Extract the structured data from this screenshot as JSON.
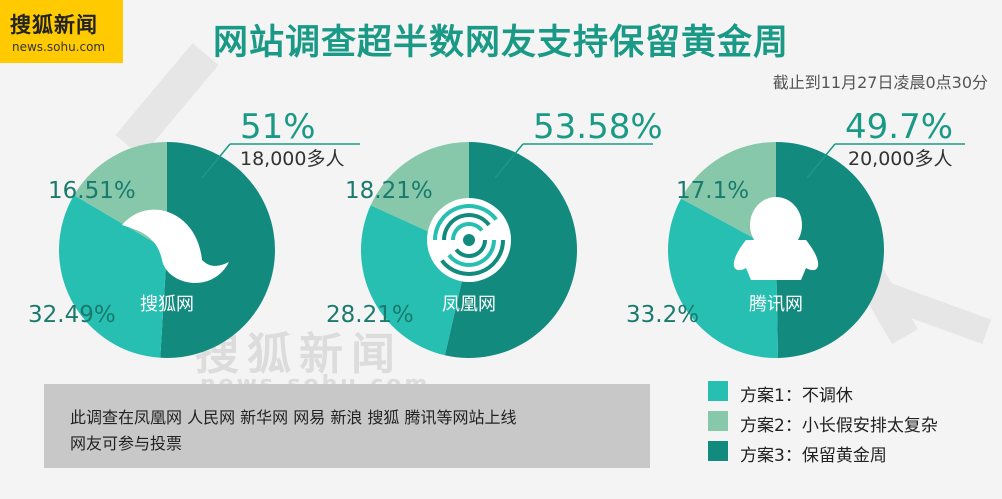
{
  "header": {
    "logo_text": "搜狐新闻",
    "logo_domain": "news.sohu.com",
    "title": "网站调查超半数网友支持保留黄金周",
    "as_of": "截止到11月27日凌晨0点30分"
  },
  "watermark": {
    "cn": "搜狐新闻",
    "en": "news.sohu.com"
  },
  "note": {
    "line1": "此调查在凤凰网 人民网 新华网 网易 新浪 搜狐 腾讯等网站上线",
    "line2": "网友可参与投票"
  },
  "legend": [
    {
      "label": "方案1：不调休",
      "color": "#26bfb2"
    },
    {
      "label": "方案2：小长假安排太复杂",
      "color": "#86c8a9"
    },
    {
      "label": "方案3：保留黄金周",
      "color": "#138a7e"
    }
  ],
  "colors": {
    "opt1": "#26bfb2",
    "opt2": "#86c8a9",
    "opt3": "#138a7e",
    "title": "#1a9a86"
  },
  "chart_data": [
    {
      "type": "pie",
      "name": "搜狐网",
      "icon": "fox-tail-icon",
      "values": [
        32.49,
        16.51,
        51
      ],
      "labels": [
        "32.49%",
        "16.51%",
        "51%"
      ],
      "participants": "18,000多人"
    },
    {
      "type": "pie",
      "name": "凤凰网",
      "icon": "phoenix-logo-icon",
      "values": [
        28.21,
        18.21,
        53.58
      ],
      "labels": [
        "28.21%",
        "18.21%",
        "53.58%"
      ],
      "participants": ""
    },
    {
      "type": "pie",
      "name": "腾讯网",
      "icon": "penguin-icon",
      "values": [
        33.2,
        17.1,
        49.7
      ],
      "labels": [
        "33.2%",
        "17.1%",
        "49.7%"
      ],
      "participants": "20,000多人"
    }
  ]
}
